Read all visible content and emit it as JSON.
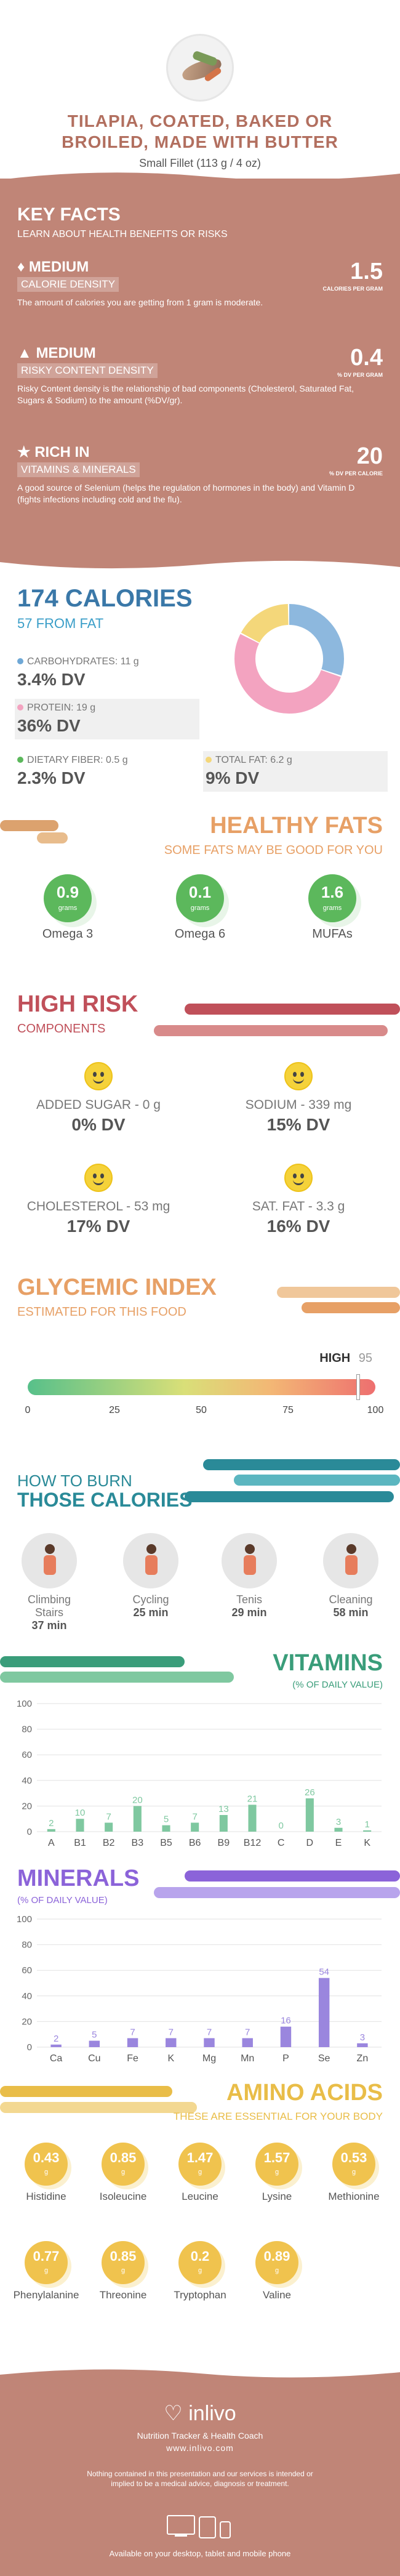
{
  "header": {
    "title_line1": "TILAPIA, COATED, BAKED OR",
    "title_line2": "BROILED, MADE WITH BUTTER",
    "serving": "Small Fillet (113 g / 4 oz)"
  },
  "key_facts": {
    "heading": "KEY FACTS",
    "subheading": "LEARN ABOUT HEALTH BENEFITS OR RISKS",
    "items": [
      {
        "level": "MEDIUM",
        "label": "CALORIE DENSITY",
        "value": "1.5",
        "unit": "CALORIES PER GRAM",
        "desc": "The amount of calories you are getting from 1 gram is moderate.",
        "icon": "flame-icon"
      },
      {
        "level": "MEDIUM",
        "label": "RISKY CONTENT DENSITY",
        "value": "0.4",
        "unit": "% DV PER GRAM",
        "desc": "Risky Content density is the relationship of bad components (Cholesterol, Saturated Fat, Sugars & Sodium) to the amount (%DV/gr).",
        "icon": "warning-icon"
      },
      {
        "level": "RICH  IN",
        "label": "VITAMINS & MINERALS",
        "value": "20",
        "unit": "% DV PER CALORIE",
        "desc": "A good source of Selenium (helps the regulation of hormones in the body) and Vitamin D (fights infections including cold and the flu).",
        "icon": "thumbs-up-icon"
      }
    ]
  },
  "calories": {
    "total": "174 CALORIES",
    "from_fat": "57 FROM FAT",
    "macros": [
      {
        "label": "CARBOHYDRATES: 11 g",
        "dv": "3.4% DV",
        "color": "#6fa8d6"
      },
      {
        "label": "PROTEIN: 19 g",
        "dv": "36% DV",
        "color": "#f3a3c0"
      },
      {
        "label": "DIETARY FIBER: 0.5 g",
        "dv": "2.3% DV",
        "color": "#5cb85c"
      },
      {
        "label": "TOTAL FAT: 6.2 g",
        "dv": "9% DV",
        "color": "#f4d77a"
      }
    ],
    "donut": [
      {
        "name": "carbohydrates",
        "value": 11,
        "color": "#8db8de"
      },
      {
        "name": "protein",
        "value": 19,
        "color": "#f3a3c0"
      },
      {
        "name": "total fat",
        "value": 6.2,
        "color": "#f4d77a"
      }
    ]
  },
  "healthy_fats": {
    "heading": "HEALTHY FATS",
    "subheading": "SOME FATS MAY BE GOOD FOR YOU",
    "items": [
      {
        "value": "0.9",
        "unit": "grams",
        "label": "Omega 3"
      },
      {
        "value": "0.1",
        "unit": "grams",
        "label": "Omega 6"
      },
      {
        "value": "1.6",
        "unit": "grams",
        "label": "MUFAs"
      }
    ]
  },
  "high_risk": {
    "heading": "HIGH RISK",
    "subheading": "COMPONENTS",
    "items": [
      {
        "name": "ADDED SUGAR - 0 g",
        "dv": "0% DV"
      },
      {
        "name": "SODIUM - 339 mg",
        "dv": "15% DV"
      },
      {
        "name": "CHOLESTEROL - 53 mg",
        "dv": "17% DV"
      },
      {
        "name": "SAT. FAT - 3.3 g",
        "dv": "16% DV"
      }
    ]
  },
  "glycemic": {
    "heading": "GLYCEMIC INDEX",
    "subheading": "ESTIMATED FOR THIS FOOD",
    "level": "HIGH",
    "value": "95",
    "ticks": [
      "0",
      "25",
      "50",
      "75",
      "100"
    ],
    "marker_fraction": 0.95
  },
  "burn": {
    "heading1": "HOW TO BURN",
    "heading2": "THOSE CALORIES",
    "items": [
      {
        "label": "Climbing Stairs",
        "time": "37 min",
        "icon": "stairs-climber-icon"
      },
      {
        "label": "Cycling",
        "time": "25 min",
        "icon": "cyclist-icon"
      },
      {
        "label": "Tenis",
        "time": "29 min",
        "icon": "tennis-player-icon"
      },
      {
        "label": "Cleaning",
        "time": "58 min",
        "icon": "cleaning-person-icon"
      }
    ]
  },
  "vitamins": {
    "heading": "VITAMINS",
    "subheading": "(% OF DAILY VALUE)"
  },
  "minerals": {
    "heading": "MINERALS",
    "subheading": "(% OF DAILY VALUE)"
  },
  "chart_data": [
    {
      "type": "bar",
      "categories": [
        "A",
        "B1",
        "B2",
        "B3",
        "B5",
        "B6",
        "B9",
        "B12",
        "C",
        "D",
        "E",
        "K"
      ],
      "values": [
        2,
        10,
        7,
        20,
        5,
        7,
        13,
        21,
        0,
        26,
        3,
        1
      ],
      "title": "VITAMINS",
      "subtitle": "(% OF DAILY VALUE)",
      "ylim": [
        0,
        100
      ],
      "yticks": [
        "0",
        "20",
        "40",
        "60",
        "80",
        "100"
      ],
      "grid": true,
      "color": "#7fc8a0"
    },
    {
      "type": "bar",
      "categories": [
        "Ca",
        "Cu",
        "Fe",
        "K",
        "Mg",
        "Mn",
        "P",
        "Se",
        "Zn"
      ],
      "values": [
        2,
        5,
        7,
        7,
        7,
        7,
        16,
        54,
        3
      ],
      "title": "MINERALS",
      "subtitle": "(% OF DAILY VALUE)",
      "ylim": [
        0,
        100
      ],
      "yticks": [
        "0",
        "20",
        "40",
        "60",
        "80",
        "100"
      ],
      "grid": true,
      "color": "#9a86de"
    }
  ],
  "amino": {
    "heading": "AMINO ACIDS",
    "subheading": "THESE ARE ESSENTIAL FOR YOUR BODY",
    "unit": "g",
    "items": [
      {
        "value": "0.43",
        "label": "Histidine"
      },
      {
        "value": "0.85",
        "label": "Isoleucine"
      },
      {
        "value": "1.47",
        "label": "Leucine"
      },
      {
        "value": "1.57",
        "label": "Lysine"
      },
      {
        "value": "0.53",
        "label": "Methionine"
      },
      {
        "value": "0.77",
        "label": "Phenylalanine"
      },
      {
        "value": "0.85",
        "label": "Threonine"
      },
      {
        "value": "0.2",
        "label": "Tryptophan"
      },
      {
        "value": "0.89",
        "label": "Valine"
      }
    ]
  },
  "footer": {
    "brand": "inlivo",
    "tagline": "Nutrition Tracker & Health Coach",
    "url": "www.inlivo.com",
    "disclaimer": "Nothing contained in this presentation and our services is intended or implied to be a medical advice, diagnosis or treatment.",
    "available": "Available on your desktop, tablet and mobile phone"
  },
  "colors": {
    "brand": "#c08577",
    "calories_blue": "#3a78a8",
    "healthy_green": "#5cb85c",
    "risk_red": "#c0505a",
    "gi_orange": "#e7a066",
    "burn_teal": "#2a8a98",
    "vitamins_green": "#3a9d7a",
    "minerals_purple": "#8b63d9",
    "amino_gold": "#e9bd48"
  }
}
